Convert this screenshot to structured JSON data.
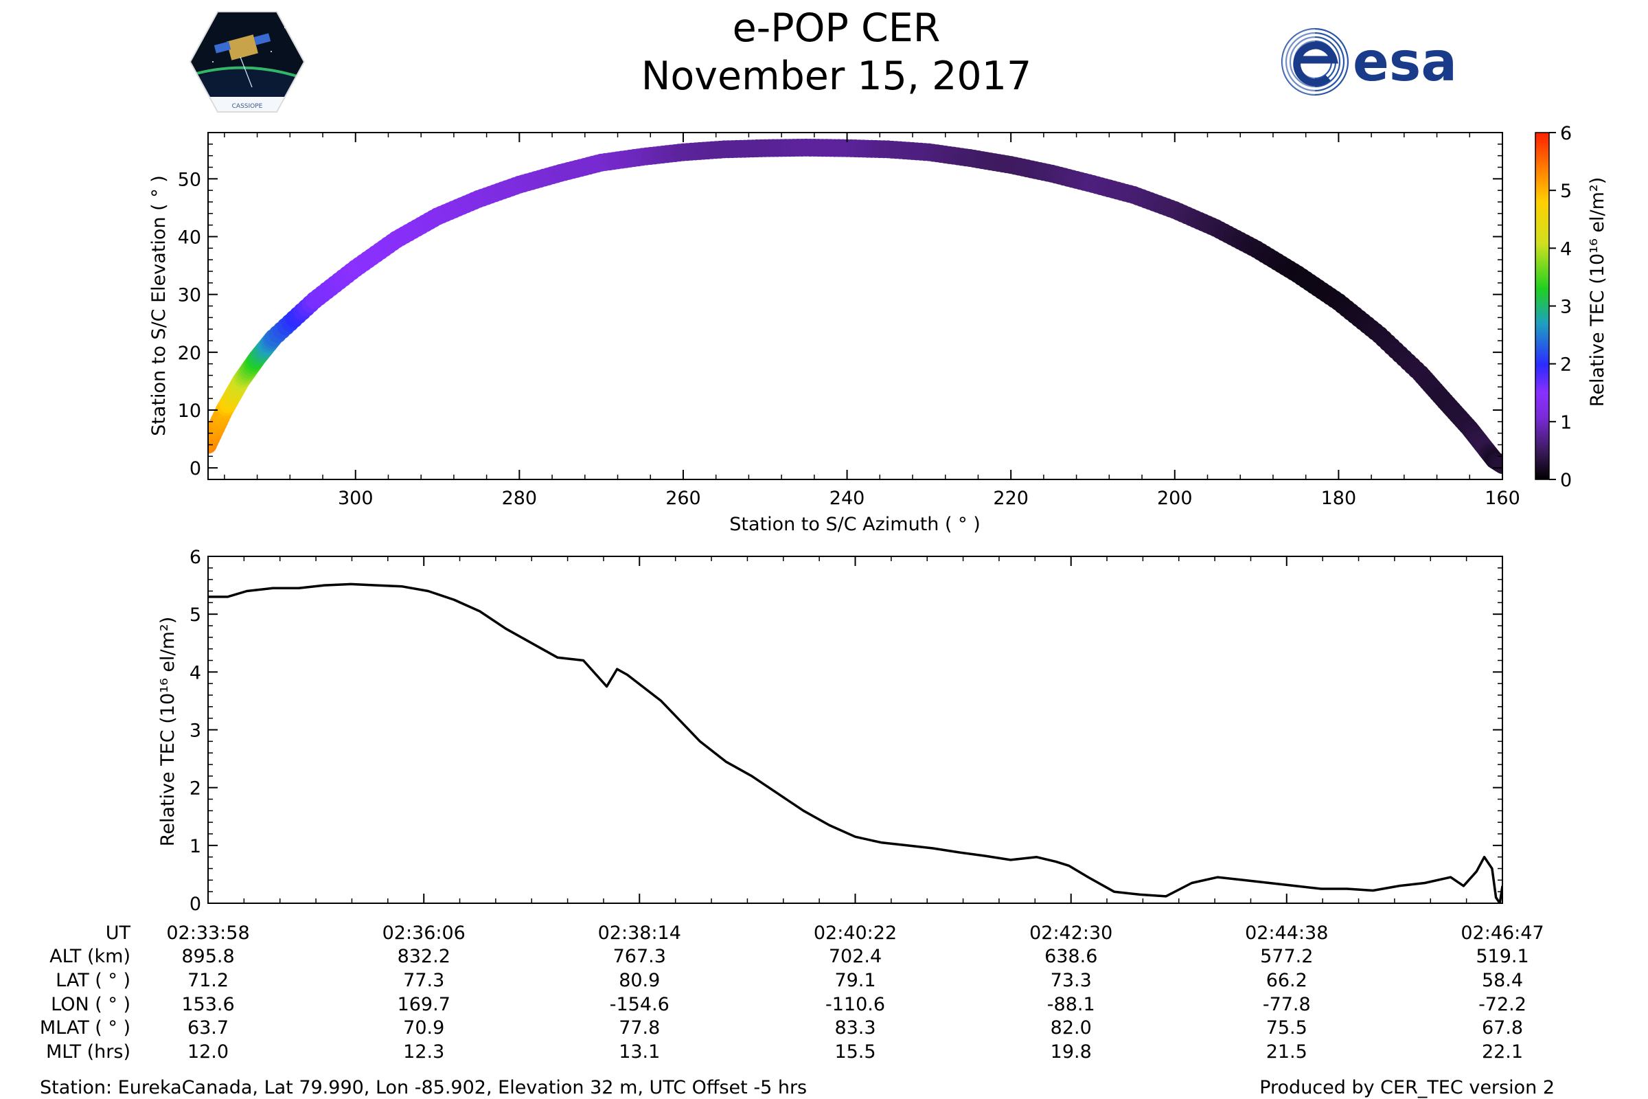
{
  "header": {
    "title": "e-POP CER",
    "date": "November 15, 2017",
    "logo_left": "CASSIOPE",
    "logo_right": "esa"
  },
  "colors": {
    "background": "#ffffff",
    "axis": "#000000",
    "tec_line": "#000000",
    "esa_blue": "#1a3a8a",
    "colormap": [
      "#000000",
      "#3b1a5a",
      "#7a2bd8",
      "#8a30ff",
      "#2b2bff",
      "#1fa0c0",
      "#20d020",
      "#d0e020",
      "#ffd000",
      "#ff7a00",
      "#ff2000"
    ]
  },
  "chart_data": [
    {
      "type": "scatter",
      "title": "",
      "xlabel": "Station to S/C Azimuth ( $^\\circ$ )",
      "xlabel_text": "Station to S/C Azimuth ( ° )",
      "ylabel_text": "Station to S/C Elevation ( ° )",
      "xlim": [
        318,
        160
      ],
      "ylim": [
        -2,
        58
      ],
      "xticks": [
        300,
        280,
        260,
        240,
        220,
        200,
        180,
        160
      ],
      "yticks": [
        0,
        10,
        20,
        30,
        40,
        50
      ],
      "track": {
        "azimuth": [
          318,
          316,
          314,
          312,
          310,
          305,
          300,
          295,
          290,
          285,
          280,
          275,
          270,
          265,
          260,
          255,
          250,
          245,
          240,
          235,
          230,
          225,
          220,
          215,
          210,
          205,
          200,
          195,
          190,
          185,
          180,
          175,
          170,
          167,
          164,
          162,
          161,
          160
        ],
        "elevation": [
          4,
          10,
          15,
          19,
          22.5,
          29,
          34.5,
          39.5,
          43.5,
          46.5,
          49,
          51,
          52.8,
          53.8,
          54.6,
          55.1,
          55.3,
          55.4,
          55.3,
          55.1,
          54.6,
          53.6,
          52.4,
          50.9,
          49.1,
          47.2,
          44.6,
          41.5,
          37.8,
          33.5,
          28.7,
          23.0,
          16.3,
          11.5,
          6.8,
          3.2,
          1.4,
          0.5
        ],
        "tec": [
          5.3,
          5.0,
          4.1,
          3.2,
          2.4,
          1.6,
          1.5,
          1.45,
          1.35,
          1.25,
          1.15,
          1.05,
          1.05,
          0.95,
          0.8,
          0.75,
          0.75,
          0.8,
          0.8,
          0.7,
          0.65,
          0.55,
          0.5,
          0.55,
          0.65,
          0.6,
          0.5,
          0.35,
          0.2,
          0.1,
          0.12,
          0.22,
          0.3,
          0.25,
          0.3,
          0.4,
          0.2,
          0.3
        ]
      },
      "colorbar": {
        "label_text": "Relative TEC (10¹⁶ el/m²)",
        "range": [
          0,
          6
        ],
        "ticks": [
          0,
          1,
          2,
          3,
          4,
          5,
          6
        ]
      }
    },
    {
      "type": "line",
      "title": "",
      "xlabel_text": "",
      "ylabel_text": "Relative TEC (10¹⁶ el/m²)",
      "xlim": [
        0,
        100
      ],
      "ylim": [
        0,
        6
      ],
      "yticks": [
        0,
        1,
        2,
        3,
        4,
        5,
        6
      ],
      "x_major_ticks": [
        0,
        16.67,
        33.33,
        50,
        66.67,
        83.33,
        100
      ],
      "series": [
        {
          "name": "Relative TEC",
          "x": [
            0,
            1.5,
            3,
            5,
            7,
            9,
            11,
            13,
            15,
            17,
            19,
            21,
            23,
            25,
            27,
            29,
            30.8,
            31.6,
            32.4,
            35,
            38,
            40,
            42,
            44,
            46,
            48,
            50,
            52,
            54,
            56,
            58,
            60,
            62,
            64,
            65.5,
            66.5,
            68,
            70,
            72,
            74,
            76,
            78,
            80,
            82,
            84,
            86,
            88,
            90,
            92,
            94,
            96,
            97,
            98,
            98.6,
            99.2,
            99.5,
            99.8,
            100
          ],
          "values": [
            5.3,
            5.3,
            5.4,
            5.45,
            5.45,
            5.5,
            5.52,
            5.5,
            5.48,
            5.4,
            5.25,
            5.05,
            4.75,
            4.5,
            4.25,
            4.2,
            3.75,
            4.05,
            3.95,
            3.5,
            2.8,
            2.45,
            2.2,
            1.9,
            1.6,
            1.35,
            1.15,
            1.05,
            1.0,
            0.95,
            0.88,
            0.82,
            0.75,
            0.8,
            0.72,
            0.65,
            0.45,
            0.2,
            0.15,
            0.12,
            0.35,
            0.45,
            0.4,
            0.35,
            0.3,
            0.25,
            0.25,
            0.22,
            0.3,
            0.35,
            0.45,
            0.3,
            0.55,
            0.8,
            0.6,
            0.1,
            0.0,
            0.3
          ]
        }
      ]
    }
  ],
  "orbit_table": {
    "rows": [
      {
        "label": "UT",
        "values": [
          "02:33:58",
          "02:36:06",
          "02:38:14",
          "02:40:22",
          "02:42:30",
          "02:44:38",
          "02:46:47"
        ]
      },
      {
        "label": "ALT (km)",
        "values": [
          "895.8",
          "832.2",
          "767.3",
          "702.4",
          "638.6",
          "577.2",
          "519.1"
        ]
      },
      {
        "label": "LAT ( ° )",
        "values": [
          "71.2",
          "77.3",
          "80.9",
          "79.1",
          "73.3",
          "66.2",
          "58.4"
        ]
      },
      {
        "label": "LON ( ° )",
        "values": [
          "153.6",
          "169.7",
          "-154.6",
          "-110.6",
          "-88.1",
          "-77.8",
          "-72.2"
        ]
      },
      {
        "label": "MLAT ( ° )",
        "values": [
          "63.7",
          "70.9",
          "77.8",
          "83.3",
          "82.0",
          "75.5",
          "67.8"
        ]
      },
      {
        "label": "MLT (hrs)",
        "values": [
          "12.0",
          "12.3",
          "13.1",
          "15.5",
          "19.8",
          "21.5",
          "22.1"
        ]
      }
    ]
  },
  "footer": {
    "station": "Station: EurekaCanada, Lat 79.990, Lon -85.902, Elevation 32 m, UTC Offset -5 hrs",
    "produced_by": "Produced by CER_TEC version 2"
  }
}
